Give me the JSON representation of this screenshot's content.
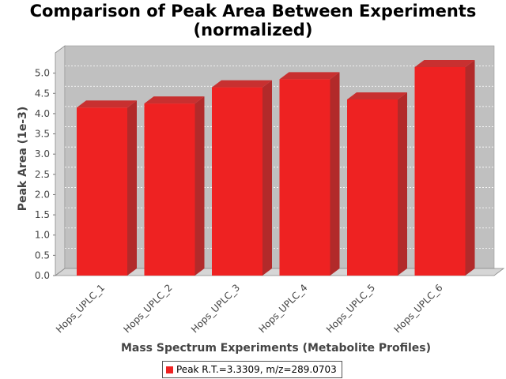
{
  "chart_data": {
    "type": "bar",
    "title": "Comparison of Peak Area Between Experiments",
    "subtitle": "(normalized)",
    "xlabel": "Mass Spectrum Experiments (Metabolite Profiles)",
    "ylabel": "Peak Area (1e-3)",
    "categories": [
      "Hops_UPLC_1",
      "Hops_UPLC_2",
      "Hops_UPLC_3",
      "Hops_UPLC_4",
      "Hops_UPLC_5",
      "Hops_UPLC_6"
    ],
    "series": [
      {
        "name": "Peak R.T.=3.3309, m/z=289.0703",
        "values": [
          4.15,
          4.25,
          4.65,
          4.85,
          4.35,
          5.15
        ],
        "color": "#ee2222"
      }
    ],
    "yticks": [
      "0.0",
      "0.5",
      "1.0",
      "1.5",
      "2.0",
      "2.5",
      "3.0",
      "3.5",
      "4.0",
      "4.5",
      "5.0"
    ],
    "ylim": [
      0,
      5.5
    ],
    "grid": true,
    "three_d": true,
    "legend_position": "bottom"
  }
}
